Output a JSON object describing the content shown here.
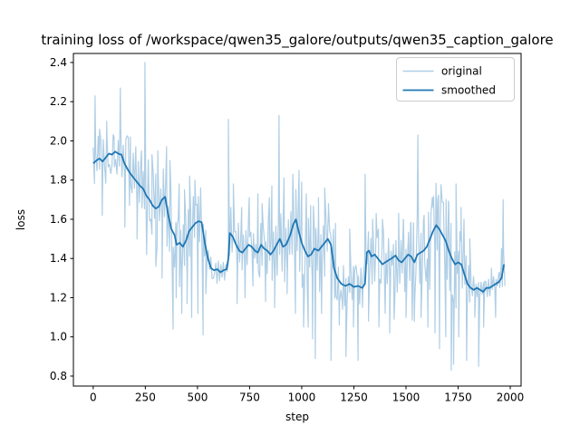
{
  "chart_data": {
    "type": "line",
    "title": "training loss of /workspace/qwen35_galore/outputs/qwen35_caption_galore",
    "xlabel": "step",
    "ylabel": "loss",
    "xlim": [
      -95,
      2052
    ],
    "ylim": [
      0.749,
      2.446
    ],
    "grid": false,
    "xticks": {
      "positions": [
        0,
        250,
        500,
        750,
        1000,
        1250,
        1500,
        1750,
        2000
      ],
      "labels": [
        "0",
        "250",
        "500",
        "750",
        "1000",
        "1250",
        "1500",
        "1750",
        "2000"
      ]
    },
    "yticks": {
      "positions": [
        0.8,
        1.0,
        1.2,
        1.4,
        1.6,
        1.8,
        2.0,
        2.2,
        2.4
      ],
      "labels": [
        "0.8",
        "1.0",
        "1.2",
        "1.4",
        "1.6",
        "1.8",
        "2.0",
        "2.2",
        "2.4"
      ]
    },
    "legend": {
      "position": "upper right",
      "border_color": "#cccccc",
      "background": "#ffffff"
    },
    "series": [
      {
        "name": "original",
        "color": "#afcee5",
        "line_width": 1.2,
        "style": "noisy-raw-loss",
        "synthesis": {
          "from": "smoothed",
          "x_start": 0,
          "x_end": 1978,
          "sample_step": 6,
          "seed": 42,
          "noise_band": [
            [
              0,
              0.12
            ],
            [
              60,
              0.15
            ],
            [
              120,
              0.17
            ],
            [
              200,
              0.18
            ],
            [
              280,
              0.2
            ],
            [
              360,
              0.22
            ],
            [
              430,
              0.21
            ],
            [
              500,
              0.2
            ],
            [
              535,
              0.12
            ],
            [
              550,
              0.055
            ],
            [
              638,
              0.055
            ],
            [
              655,
              0.14
            ],
            [
              700,
              0.16
            ],
            [
              760,
              0.14
            ],
            [
              830,
              0.16
            ],
            [
              890,
              0.17
            ],
            [
              940,
              0.2
            ],
            [
              1000,
              0.24
            ],
            [
              1060,
              0.26
            ],
            [
              1110,
              0.22
            ],
            [
              1150,
              0.18
            ],
            [
              1185,
              0.11
            ],
            [
              1295,
              0.11
            ],
            [
              1315,
              0.16
            ],
            [
              1400,
              0.18
            ],
            [
              1470,
              0.19
            ],
            [
              1540,
              0.2
            ],
            [
              1600,
              0.22
            ],
            [
              1660,
              0.24
            ],
            [
              1720,
              0.26
            ],
            [
              1770,
              0.22
            ],
            [
              1800,
              0.15
            ],
            [
              1818,
              0.045
            ],
            [
              1948,
              0.045
            ],
            [
              1960,
              0.12
            ],
            [
              1978,
              0.13
            ]
          ],
          "spikes": [
            [
              9,
              2.23
            ],
            [
              30,
              2.06
            ],
            [
              43,
              1.62
            ],
            [
              65,
              2.1
            ],
            [
              100,
              2.02
            ],
            [
              130,
              2.27
            ],
            [
              152,
              1.56
            ],
            [
              178,
              2.02
            ],
            [
              210,
              1.5
            ],
            [
              232,
              1.95
            ],
            [
              248,
              2.4
            ],
            [
              256,
              1.42
            ],
            [
              282,
              1.93
            ],
            [
              300,
              1.36
            ],
            [
              310,
              1.95
            ],
            [
              330,
              1.3
            ],
            [
              352,
              1.97
            ],
            [
              368,
              1.9
            ],
            [
              383,
              1.04
            ],
            [
              398,
              1.2
            ],
            [
              412,
              1.78
            ],
            [
              425,
              1.12
            ],
            [
              438,
              1.75
            ],
            [
              450,
              1.17
            ],
            [
              462,
              1.82
            ],
            [
              472,
              1.1
            ],
            [
              488,
              1.8
            ],
            [
              502,
              1.12
            ],
            [
              515,
              1.76
            ],
            [
              527,
              1.01
            ],
            [
              540,
              1.22
            ],
            [
              648,
              2.11
            ],
            [
              672,
              1.78
            ],
            [
              690,
              1.17
            ],
            [
              712,
              1.66
            ],
            [
              728,
              1.2
            ],
            [
              748,
              1.71
            ],
            [
              766,
              1.26
            ],
            [
              790,
              1.73
            ],
            [
              810,
              1.68
            ],
            [
              827,
              1.18
            ],
            [
              845,
              1.71
            ],
            [
              857,
              1.77
            ],
            [
              870,
              1.15
            ],
            [
              891,
              2.13
            ],
            [
              915,
              1.81
            ],
            [
              930,
              1.22
            ],
            [
              957,
              1.83
            ],
            [
              970,
              1.12
            ],
            [
              987,
              1.85
            ],
            [
              1000,
              1.79
            ],
            [
              1009,
              1.05
            ],
            [
              1022,
              1.73
            ],
            [
              1031,
              1.05
            ],
            [
              1043,
              1.67
            ],
            [
              1052,
              0.99
            ],
            [
              1065,
              0.89
            ],
            [
              1080,
              1.71
            ],
            [
              1095,
              1.12
            ],
            [
              1110,
              1.76
            ],
            [
              1128,
              1.68
            ],
            [
              1140,
              0.88
            ],
            [
              1162,
              1.58
            ],
            [
              1180,
              1.06
            ],
            [
              1196,
              1.14
            ],
            [
              1212,
              0.9
            ],
            [
              1230,
              1.55
            ],
            [
              1248,
              1.05
            ],
            [
              1270,
              0.88
            ],
            [
              1291,
              1.15
            ],
            [
              1304,
              1.83
            ],
            [
              1320,
              1.08
            ],
            [
              1340,
              1.6
            ],
            [
              1357,
              1.63
            ],
            [
              1370,
              1.05
            ],
            [
              1387,
              1.6
            ],
            [
              1400,
              1.12
            ],
            [
              1422,
              1.02
            ],
            [
              1443,
              1.09
            ],
            [
              1465,
              1.63
            ],
            [
              1487,
              1.6
            ],
            [
              1500,
              1.1
            ],
            [
              1522,
              1.58
            ],
            [
              1540,
              1.08
            ],
            [
              1557,
              2.03
            ],
            [
              1572,
              1.1
            ],
            [
              1587,
              1.62
            ],
            [
              1605,
              1.05
            ],
            [
              1626,
              1.66
            ],
            [
              1639,
              1.02
            ],
            [
              1652,
              1.7
            ],
            [
              1661,
              0.94
            ],
            [
              1680,
              1.65
            ],
            [
              1691,
              1.0
            ],
            [
              1705,
              1.68
            ],
            [
              1717,
              0.83
            ],
            [
              1728,
              0.86
            ],
            [
              1740,
              1.78
            ],
            [
              1753,
              1.0
            ],
            [
              1764,
              1.66
            ],
            [
              1778,
              1.6
            ],
            [
              1791,
              0.88
            ],
            [
              1806,
              1.5
            ],
            [
              1830,
              1.1
            ],
            [
              1848,
              0.85
            ],
            [
              1872,
              1.05
            ],
            [
              1910,
              1.35
            ],
            [
              1930,
              1.1
            ],
            [
              1948,
              1.33
            ],
            [
              1958,
              1.45
            ],
            [
              1966,
              1.7
            ],
            [
              1974,
              1.26
            ]
          ]
        }
      },
      {
        "name": "smoothed",
        "color": "#1f77b4",
        "line_width": 1.8,
        "points": [
          [
            0,
            1.885
          ],
          [
            15,
            1.9
          ],
          [
            30,
            1.91
          ],
          [
            45,
            1.895
          ],
          [
            60,
            1.915
          ],
          [
            75,
            1.935
          ],
          [
            90,
            1.93
          ],
          [
            105,
            1.945
          ],
          [
            120,
            1.935
          ],
          [
            135,
            1.93
          ],
          [
            150,
            1.885
          ],
          [
            165,
            1.855
          ],
          [
            180,
            1.83
          ],
          [
            195,
            1.81
          ],
          [
            210,
            1.79
          ],
          [
            225,
            1.77
          ],
          [
            240,
            1.755
          ],
          [
            255,
            1.72
          ],
          [
            270,
            1.7
          ],
          [
            285,
            1.67
          ],
          [
            300,
            1.655
          ],
          [
            315,
            1.665
          ],
          [
            330,
            1.7
          ],
          [
            345,
            1.715
          ],
          [
            360,
            1.62
          ],
          [
            375,
            1.55
          ],
          [
            390,
            1.52
          ],
          [
            400,
            1.47
          ],
          [
            415,
            1.48
          ],
          [
            430,
            1.46
          ],
          [
            445,
            1.49
          ],
          [
            460,
            1.54
          ],
          [
            475,
            1.56
          ],
          [
            490,
            1.58
          ],
          [
            505,
            1.59
          ],
          [
            520,
            1.585
          ],
          [
            535,
            1.48
          ],
          [
            550,
            1.4
          ],
          [
            565,
            1.35
          ],
          [
            580,
            1.34
          ],
          [
            595,
            1.345
          ],
          [
            610,
            1.33
          ],
          [
            625,
            1.34
          ],
          [
            640,
            1.345
          ],
          [
            648,
            1.4
          ],
          [
            655,
            1.53
          ],
          [
            670,
            1.51
          ],
          [
            685,
            1.47
          ],
          [
            700,
            1.44
          ],
          [
            715,
            1.43
          ],
          [
            730,
            1.45
          ],
          [
            745,
            1.47
          ],
          [
            760,
            1.46
          ],
          [
            775,
            1.44
          ],
          [
            790,
            1.43
          ],
          [
            805,
            1.47
          ],
          [
            820,
            1.45
          ],
          [
            835,
            1.44
          ],
          [
            850,
            1.42
          ],
          [
            865,
            1.44
          ],
          [
            880,
            1.47
          ],
          [
            895,
            1.5
          ],
          [
            910,
            1.46
          ],
          [
            925,
            1.47
          ],
          [
            945,
            1.52
          ],
          [
            960,
            1.575
          ],
          [
            972,
            1.6
          ],
          [
            985,
            1.54
          ],
          [
            1000,
            1.48
          ],
          [
            1015,
            1.44
          ],
          [
            1030,
            1.41
          ],
          [
            1045,
            1.42
          ],
          [
            1060,
            1.45
          ],
          [
            1080,
            1.44
          ],
          [
            1095,
            1.46
          ],
          [
            1110,
            1.48
          ],
          [
            1125,
            1.5
          ],
          [
            1140,
            1.47
          ],
          [
            1155,
            1.35
          ],
          [
            1170,
            1.3
          ],
          [
            1190,
            1.27
          ],
          [
            1210,
            1.26
          ],
          [
            1230,
            1.27
          ],
          [
            1250,
            1.255
          ],
          [
            1270,
            1.26
          ],
          [
            1290,
            1.25
          ],
          [
            1303,
            1.27
          ],
          [
            1312,
            1.43
          ],
          [
            1322,
            1.44
          ],
          [
            1335,
            1.41
          ],
          [
            1350,
            1.42
          ],
          [
            1365,
            1.4
          ],
          [
            1387,
            1.37
          ],
          [
            1400,
            1.38
          ],
          [
            1415,
            1.39
          ],
          [
            1430,
            1.4
          ],
          [
            1450,
            1.415
          ],
          [
            1465,
            1.39
          ],
          [
            1480,
            1.38
          ],
          [
            1495,
            1.4
          ],
          [
            1510,
            1.42
          ],
          [
            1525,
            1.41
          ],
          [
            1540,
            1.38
          ],
          [
            1555,
            1.42
          ],
          [
            1570,
            1.43
          ],
          [
            1585,
            1.44
          ],
          [
            1600,
            1.46
          ],
          [
            1615,
            1.5
          ],
          [
            1630,
            1.54
          ],
          [
            1645,
            1.57
          ],
          [
            1660,
            1.55
          ],
          [
            1675,
            1.52
          ],
          [
            1690,
            1.49
          ],
          [
            1705,
            1.44
          ],
          [
            1720,
            1.4
          ],
          [
            1735,
            1.37
          ],
          [
            1750,
            1.38
          ],
          [
            1765,
            1.37
          ],
          [
            1780,
            1.32
          ],
          [
            1795,
            1.27
          ],
          [
            1810,
            1.25
          ],
          [
            1825,
            1.24
          ],
          [
            1840,
            1.25
          ],
          [
            1855,
            1.24
          ],
          [
            1870,
            1.23
          ],
          [
            1885,
            1.25
          ],
          [
            1900,
            1.25
          ],
          [
            1915,
            1.26
          ],
          [
            1930,
            1.27
          ],
          [
            1945,
            1.28
          ],
          [
            1958,
            1.3
          ],
          [
            1970,
            1.37
          ]
        ]
      }
    ]
  }
}
